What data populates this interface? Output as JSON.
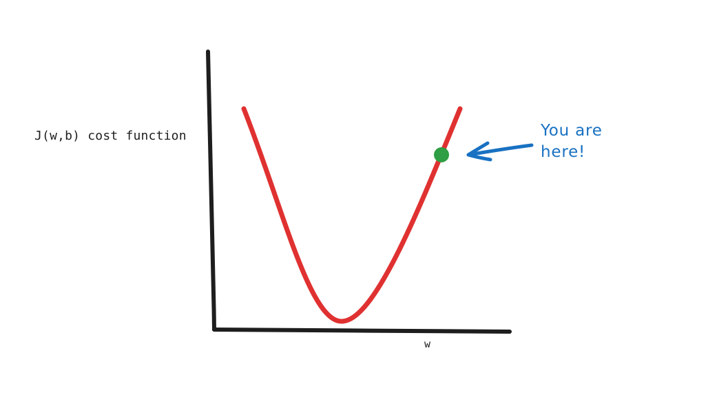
{
  "diagram": {
    "y_axis_label": "J(w,b) cost function",
    "x_axis_label": "w",
    "annotation": {
      "lines": [
        "You are",
        "here!"
      ]
    },
    "colors": {
      "axes": "#1e1e1e",
      "curve": "#e03131",
      "marker": "#2f9e44",
      "annotation": "#1971c2"
    }
  }
}
